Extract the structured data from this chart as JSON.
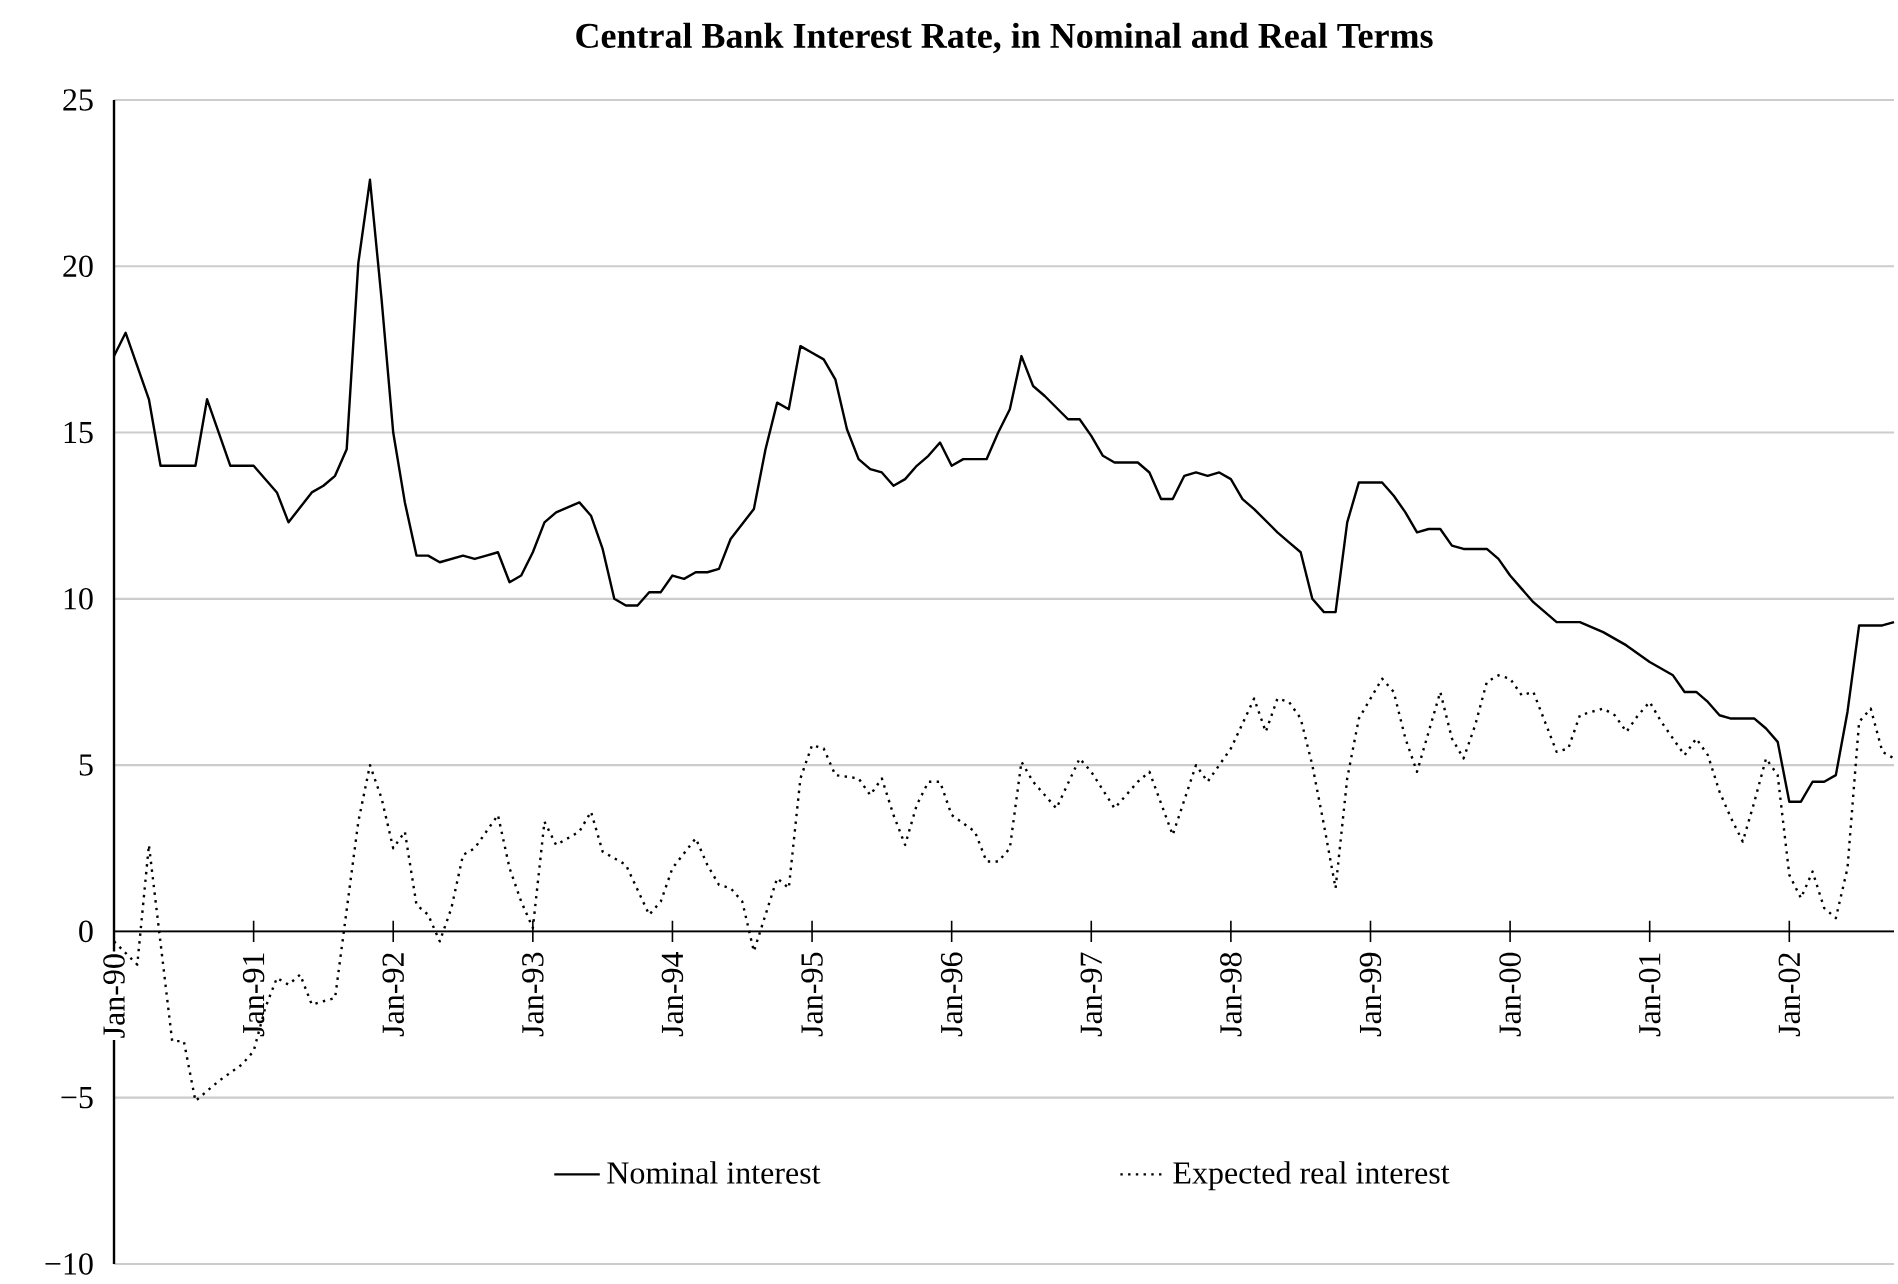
{
  "chart_data": {
    "type": "line",
    "title": "Central Bank Interest Rate, in Nominal and Real Terms",
    "xlim": [
      "1990-01",
      "2002-10"
    ],
    "xticks": [
      {
        "value": "1990-01",
        "label": "Jan-90"
      },
      {
        "value": "1991-01",
        "label": "Jan-91"
      },
      {
        "value": "1992-01",
        "label": "Jan-92"
      },
      {
        "value": "1993-01",
        "label": "Jan-93"
      },
      {
        "value": "1994-01",
        "label": "Jan-94"
      },
      {
        "value": "1995-01",
        "label": "Jan-95"
      },
      {
        "value": "1996-01",
        "label": "Jan-96"
      },
      {
        "value": "1997-01",
        "label": "Jan-97"
      },
      {
        "value": "1998-01",
        "label": "Jan-98"
      },
      {
        "value": "1999-01",
        "label": "Jan-99"
      },
      {
        "value": "2000-01",
        "label": "Jan-00"
      },
      {
        "value": "2001-01",
        "label": "Jan-01"
      },
      {
        "value": "2002-01",
        "label": "Jan-02"
      }
    ],
    "ylim": [
      -10,
      25
    ],
    "yticks": [
      {
        "value": -10,
        "label": "−10"
      },
      {
        "value": -5,
        "label": "−5"
      },
      0,
      5,
      10,
      15,
      20,
      25
    ],
    "grid": "y",
    "legend": "bottom",
    "series": [
      {
        "name": "Nominal interest",
        "color": "#000000",
        "line_style": "solid",
        "x": [
          "1990-01",
          "1990-02",
          "1990-04",
          "1990-05",
          "1990-08",
          "1990-09",
          "1990-11",
          "1991-01",
          "1991-03",
          "1991-04",
          "1991-06",
          "1991-07",
          "1991-08",
          "1991-09",
          "1991-10",
          "1991-11",
          "1991-12",
          "1992-01",
          "1992-02",
          "1992-03",
          "1992-04",
          "1992-05",
          "1992-07",
          "1992-08",
          "1992-09",
          "1992-10",
          "1992-11",
          "1992-12",
          "1993-01",
          "1993-02",
          "1993-03",
          "1993-05",
          "1993-06",
          "1993-07",
          "1993-08",
          "1993-09",
          "1993-10",
          "1993-11",
          "1993-12",
          "1994-01",
          "1994-02",
          "1994-03",
          "1994-04",
          "1994-05",
          "1994-06",
          "1994-08",
          "1994-09",
          "1994-10",
          "1994-11",
          "1994-12",
          "1995-01",
          "1995-02",
          "1995-03",
          "1995-04",
          "1995-05",
          "1995-06",
          "1995-07",
          "1995-08",
          "1995-09",
          "1995-10",
          "1995-11",
          "1995-12",
          "1996-01",
          "1996-02",
          "1996-04",
          "1996-05",
          "1996-06",
          "1996-07",
          "1996-08",
          "1996-09",
          "1996-11",
          "1996-12",
          "1997-01",
          "1997-02",
          "1997-03",
          "1997-05",
          "1997-06",
          "1997-07",
          "1997-08",
          "1997-09",
          "1997-10",
          "1997-11",
          "1997-12",
          "1998-01",
          "1998-02",
          "1998-03",
          "1998-05",
          "1998-06",
          "1998-07",
          "1998-08",
          "1998-09",
          "1998-10",
          "1998-11",
          "1998-12",
          "1999-02",
          "1999-03",
          "1999-04",
          "1999-05",
          "1999-06",
          "1999-07",
          "1999-08",
          "1999-09",
          "1999-11",
          "1999-12",
          "2000-01",
          "2000-02",
          "2000-03",
          "2000-05",
          "2000-07",
          "2000-09",
          "2000-11",
          "2001-01",
          "2001-03",
          "2001-04",
          "2001-05",
          "2001-06",
          "2001-07",
          "2001-08",
          "2001-10",
          "2001-11",
          "2001-12",
          "2002-01",
          "2002-02",
          "2002-03",
          "2002-04",
          "2002-05",
          "2002-06",
          "2002-07",
          "2002-09",
          "2002-10"
        ],
        "values": [
          17.3,
          18.0,
          16.0,
          14.0,
          14.0,
          16.0,
          14.0,
          14.0,
          13.2,
          12.3,
          13.2,
          13.4,
          13.7,
          14.5,
          20.1,
          22.6,
          19.0,
          15.0,
          12.9,
          11.3,
          11.3,
          11.1,
          11.3,
          11.2,
          11.3,
          11.4,
          10.5,
          10.7,
          11.4,
          12.3,
          12.6,
          12.9,
          12.5,
          11.5,
          10.0,
          9.8,
          9.8,
          10.2,
          10.2,
          10.7,
          10.6,
          10.8,
          10.8,
          10.9,
          11.8,
          12.7,
          14.5,
          15.9,
          15.7,
          17.6,
          17.4,
          17.2,
          16.6,
          15.1,
          14.2,
          13.9,
          13.8,
          13.4,
          13.6,
          14.0,
          14.3,
          14.7,
          14.0,
          14.2,
          14.2,
          15.0,
          15.7,
          17.3,
          16.4,
          16.1,
          15.4,
          15.4,
          14.9,
          14.3,
          14.1,
          14.1,
          13.8,
          13.0,
          13.0,
          13.7,
          13.8,
          13.7,
          13.8,
          13.6,
          13.0,
          12.7,
          12.0,
          11.7,
          11.4,
          10.0,
          9.6,
          9.6,
          12.3,
          13.5,
          13.5,
          13.1,
          12.6,
          12.0,
          12.1,
          12.1,
          11.6,
          11.5,
          11.5,
          11.2,
          10.7,
          10.3,
          9.9,
          9.3,
          9.3,
          9.0,
          8.6,
          8.1,
          7.7,
          7.2,
          7.2,
          6.9,
          6.5,
          6.4,
          6.4,
          6.1,
          5.7,
          3.9,
          3.9,
          4.5,
          4.5,
          4.7,
          6.6,
          9.2,
          9.2,
          9.3
        ]
      },
      {
        "name": "Expected real interest",
        "color": "#000000",
        "line_style": "dotted",
        "x": [
          "1990-01",
          "1990-03",
          "1990-04",
          "1990-06",
          "1990-07",
          "1990-08",
          "1990-10",
          "1990-12",
          "1991-01",
          "1991-02",
          "1991-03",
          "1991-04",
          "1991-05",
          "1991-06",
          "1991-08",
          "1991-10",
          "1991-11",
          "1991-12",
          "1992-01",
          "1992-02",
          "1992-03",
          "1992-04",
          "1992-05",
          "1992-06",
          "1992-07",
          "1992-08",
          "1992-09",
          "1992-10",
          "1992-11",
          "1992-12",
          "1993-01",
          "1993-02",
          "1993-03",
          "1993-05",
          "1993-06",
          "1993-07",
          "1993-09",
          "1993-11",
          "1993-12",
          "1994-01",
          "1994-03",
          "1994-04",
          "1994-05",
          "1994-06",
          "1994-07",
          "1994-08",
          "1994-10",
          "1994-11",
          "1994-12",
          "1995-01",
          "1995-02",
          "1995-03",
          "1995-05",
          "1995-06",
          "1995-07",
          "1995-08",
          "1995-09",
          "1995-10",
          "1995-11",
          "1995-12",
          "1996-01",
          "1996-03",
          "1996-04",
          "1996-05",
          "1996-06",
          "1996-07",
          "1996-08",
          "1996-10",
          "1996-12",
          "1997-01",
          "1997-03",
          "1997-05",
          "1997-06",
          "1997-08",
          "1997-10",
          "1997-11",
          "1997-12",
          "1998-01",
          "1998-03",
          "1998-04",
          "1998-05",
          "1998-06",
          "1998-07",
          "1998-08",
          "1998-09",
          "1998-10",
          "1998-11",
          "1998-12",
          "1999-01",
          "1999-02",
          "1999-03",
          "1999-04",
          "1999-05",
          "1999-06",
          "1999-07",
          "1999-08",
          "1999-09",
          "1999-10",
          "1999-11",
          "1999-12",
          "2000-01",
          "2000-02",
          "2000-03",
          "2000-04",
          "2000-05",
          "2000-06",
          "2000-07",
          "2000-09",
          "2000-10",
          "2000-11",
          "2000-12",
          "2001-01",
          "2001-02",
          "2001-04",
          "2001-05",
          "2001-06",
          "2001-07",
          "2001-08",
          "2001-09",
          "2001-10",
          "2001-11",
          "2001-12",
          "2002-01",
          "2002-02",
          "2002-03",
          "2002-04",
          "2002-05",
          "2002-06",
          "2002-07",
          "2002-08",
          "2002-09",
          "2002-10"
        ],
        "values": [
          -0.3,
          -1.0,
          2.6,
          -3.3,
          -3.3,
          -5.1,
          -4.5,
          -4.0,
          -3.6,
          -2.3,
          -1.4,
          -1.6,
          -1.3,
          -2.2,
          -2.0,
          3.3,
          5.0,
          4.0,
          2.5,
          3.0,
          0.8,
          0.5,
          -0.3,
          0.7,
          2.3,
          2.5,
          3.0,
          3.5,
          1.9,
          0.9,
          0.1,
          3.3,
          2.6,
          3.0,
          3.6,
          2.4,
          2.0,
          0.5,
          0.9,
          1.9,
          2.8,
          2.0,
          1.4,
          1.3,
          0.9,
          -0.6,
          1.6,
          1.3,
          4.6,
          5.6,
          5.5,
          4.7,
          4.6,
          4.1,
          4.6,
          3.5,
          2.6,
          3.8,
          4.5,
          4.5,
          3.5,
          3.0,
          2.1,
          2.1,
          2.5,
          5.1,
          4.5,
          3.7,
          5.2,
          4.8,
          3.7,
          4.5,
          4.8,
          2.9,
          5.0,
          4.5,
          5.0,
          5.5,
          7.0,
          6.0,
          7.0,
          6.9,
          6.4,
          5.0,
          3.2,
          1.3,
          4.6,
          6.4,
          7.0,
          7.6,
          7.2,
          5.8,
          4.8,
          6.0,
          7.2,
          5.8,
          5.2,
          6.2,
          7.5,
          7.7,
          7.6,
          7.1,
          7.2,
          6.3,
          5.4,
          5.5,
          6.5,
          6.7,
          6.5,
          6.0,
          6.5,
          6.9,
          6.3,
          5.3,
          5.8,
          5.3,
          4.2,
          3.4,
          2.7,
          3.9,
          5.2,
          4.7,
          1.7,
          1.0,
          1.8,
          0.7,
          0.4,
          1.9,
          6.3,
          6.7,
          5.4,
          5.2
        ]
      }
    ]
  }
}
